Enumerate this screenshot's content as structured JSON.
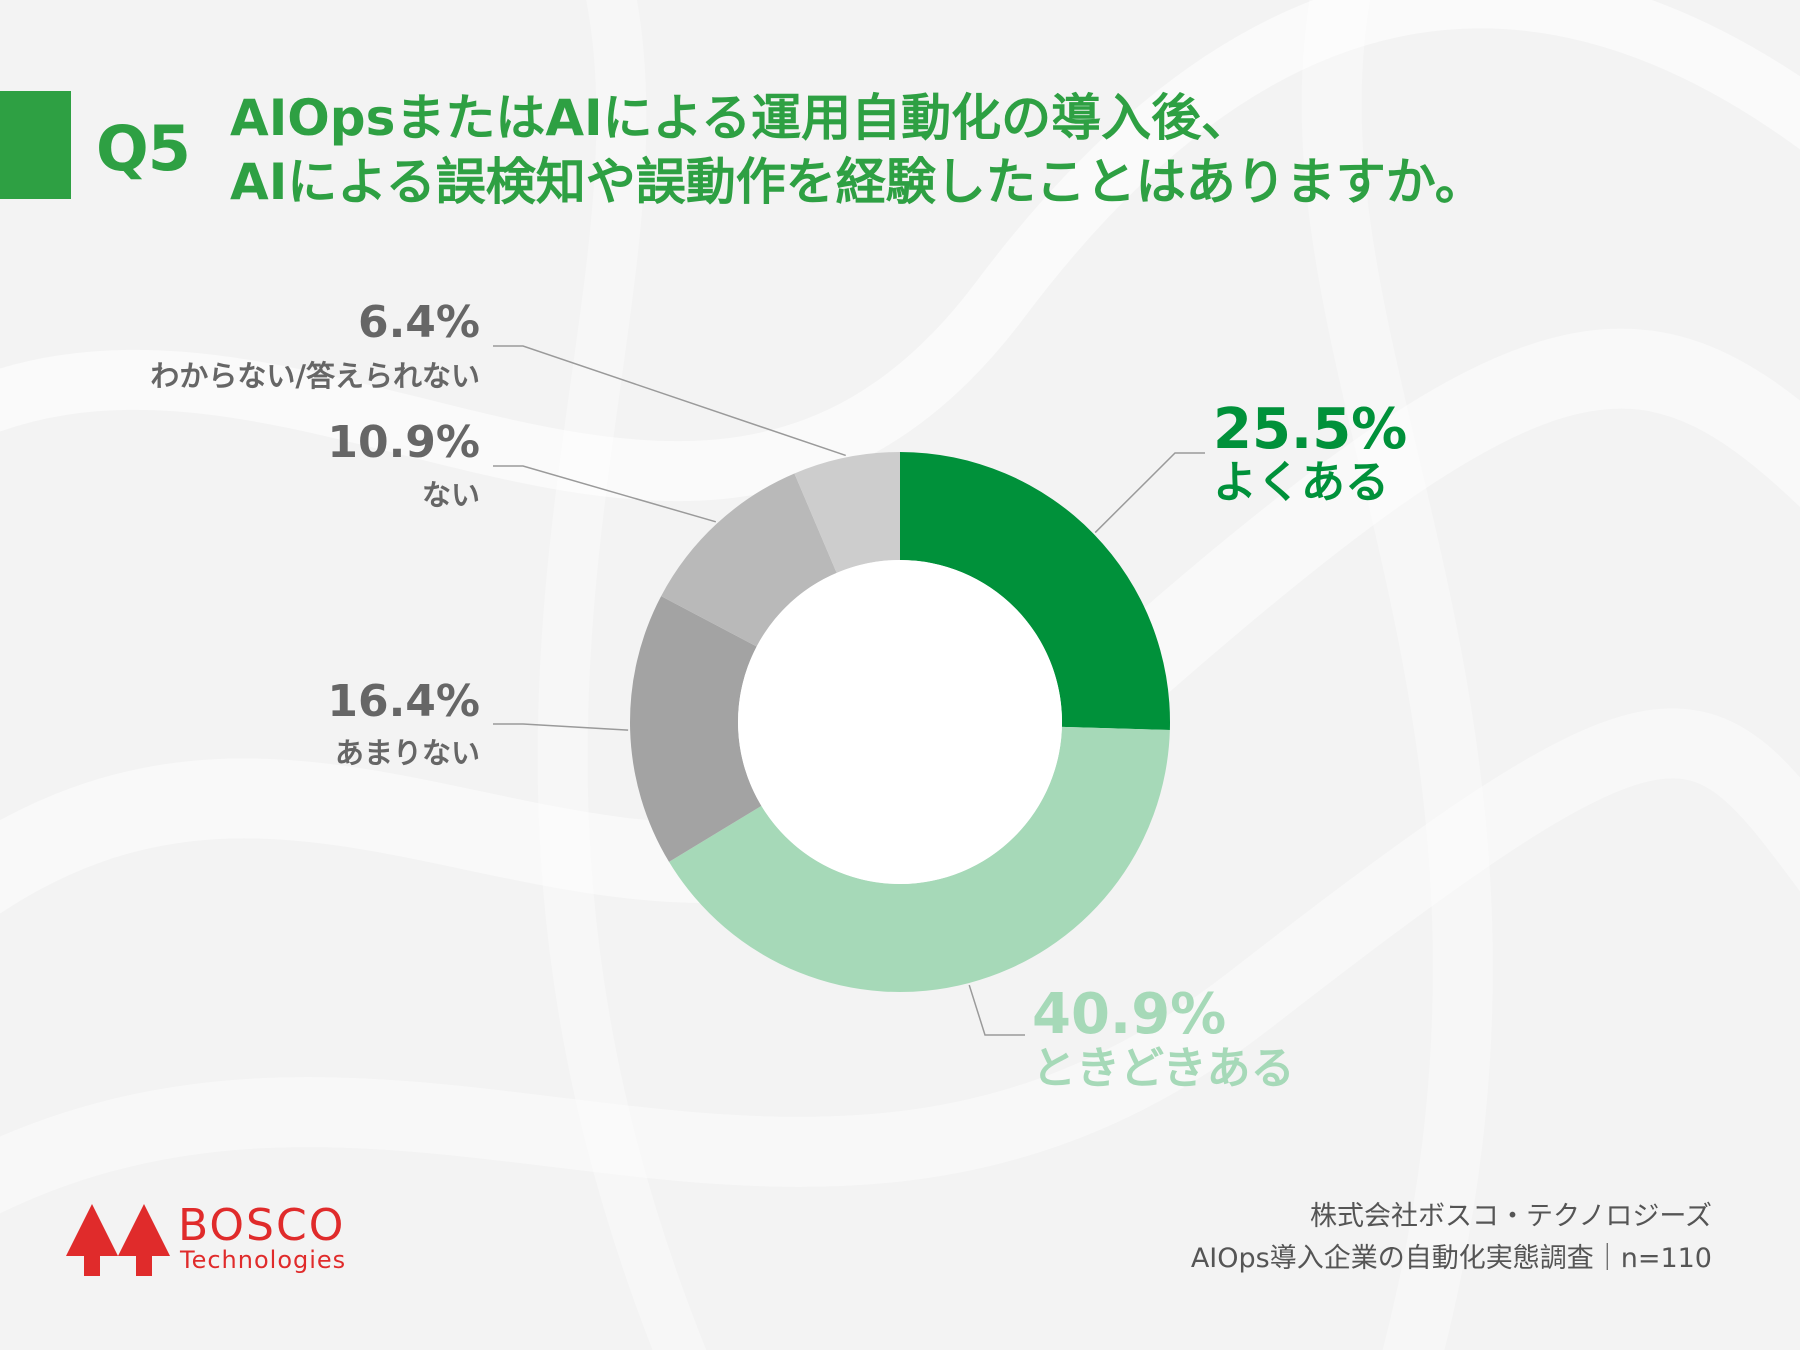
{
  "header": {
    "badge": "Q5",
    "title_line1": "AIOpsまたはAIによる運用自動化の導入後、",
    "title_line2": "AIによる誤検知や誤動作を経験したことはありますか。"
  },
  "chart_data": {
    "type": "pie",
    "donut": true,
    "slices": [
      {
        "label": "よくある",
        "value": 25.5,
        "display": "25.5%",
        "color": "#00913a"
      },
      {
        "label": "ときどきある",
        "value": 40.9,
        "display": "40.9%",
        "color": "#a6d9b8"
      },
      {
        "label": "あまりない",
        "value": 16.4,
        "display": "16.4%",
        "color": "#a3a3a3"
      },
      {
        "label": "ない",
        "value": 10.9,
        "display": "10.9%",
        "color": "#b9b9b9"
      },
      {
        "label": "わからない/答えられない",
        "value": 6.4,
        "display": "6.4%",
        "color": "#cdcdcd"
      }
    ]
  },
  "footer": {
    "company": "株式会社ボスコ・テクノロジーズ",
    "survey": "AIOps導入企業の自動化実態調査｜n=110"
  },
  "logo": {
    "word": "BOSCO",
    "sub": "Technologies",
    "color": "#e02b2b"
  },
  "colors": {
    "accent": "#2ea043",
    "label_gray": "#666666"
  }
}
